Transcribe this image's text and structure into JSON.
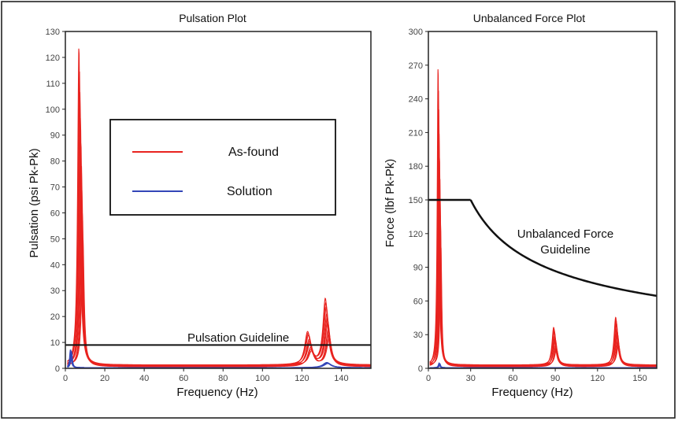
{
  "chart_data": [
    {
      "type": "line",
      "title": "Pulsation Plot",
      "xlabel": "Frequency (Hz)",
      "ylabel": "Pulsation  (psi Pk-Pk)",
      "xlim": [
        0,
        155
      ],
      "ylim": [
        0,
        130
      ],
      "xticks": [
        "0",
        "20",
        "40",
        "60",
        "80",
        "100",
        "120",
        "140"
      ],
      "xtick_values": [
        0,
        20,
        40,
        60,
        80,
        100,
        120,
        140
      ],
      "yticks": [
        "0",
        "10",
        "20",
        "30",
        "40",
        "50",
        "60",
        "70",
        "80",
        "90",
        "100",
        "110",
        "120",
        "130"
      ],
      "ytick_values": [
        0,
        10,
        20,
        30,
        40,
        50,
        60,
        70,
        80,
        90,
        100,
        110,
        120,
        130
      ],
      "grid": false,
      "legend": {
        "placement": "upper-left",
        "entries": [
          {
            "label": "As-found",
            "color": "#e8231f"
          },
          {
            "label": "Solution",
            "color": "#3346b8"
          }
        ]
      },
      "guideline": {
        "label": "Pulsation Guideline",
        "value": 9
      },
      "series": [
        {
          "name": "As-found",
          "color": "#e8231f",
          "peaks": [
            {
              "x": 8,
              "y": 124,
              "width": 1.3
            },
            {
              "x": 124,
              "y": 13,
              "width": 3
            },
            {
              "x": 133,
              "y": 26,
              "width": 2.5
            }
          ]
        },
        {
          "name": "Solution",
          "color": "#3346b8",
          "peaks": [
            {
              "x": 3,
              "y": 7,
              "width": 0.8
            },
            {
              "x": 133,
              "y": 2,
              "width": 4
            }
          ]
        }
      ]
    },
    {
      "type": "line",
      "title": "Unbalanced Force Plot",
      "xlabel": "Frequency (Hz)",
      "ylabel": "Force  (lbf Pk-Pk)",
      "xlim": [
        0,
        162
      ],
      "ylim": [
        0,
        300
      ],
      "xticks": [
        "0",
        "30",
        "60",
        "90",
        "120",
        "150"
      ],
      "xtick_values": [
        0,
        30,
        60,
        90,
        120,
        150
      ],
      "yticks": [
        "0",
        "30",
        "60",
        "90",
        "120",
        "150",
        "180",
        "210",
        "240",
        "270",
        "300"
      ],
      "ytick_values": [
        0,
        30,
        60,
        90,
        120,
        150,
        180,
        210,
        240,
        270,
        300
      ],
      "grid": false,
      "guideline": {
        "label_line1": "Unbalanced Force",
        "label_line2": "Guideline",
        "flat_value": 150,
        "knee_x": 30
      },
      "series": [
        {
          "name": "As-found",
          "color": "#e8231f",
          "peaks": [
            {
              "x": 8,
              "y": 268,
              "width": 1.2
            },
            {
              "x": 90,
              "y": 35,
              "width": 2.5
            },
            {
              "x": 134,
              "y": 44,
              "width": 2.5
            }
          ]
        },
        {
          "name": "Solution",
          "color": "#3346b8",
          "peaks": [
            {
              "x": 8,
              "y": 4,
              "width": 1
            }
          ]
        }
      ]
    }
  ]
}
